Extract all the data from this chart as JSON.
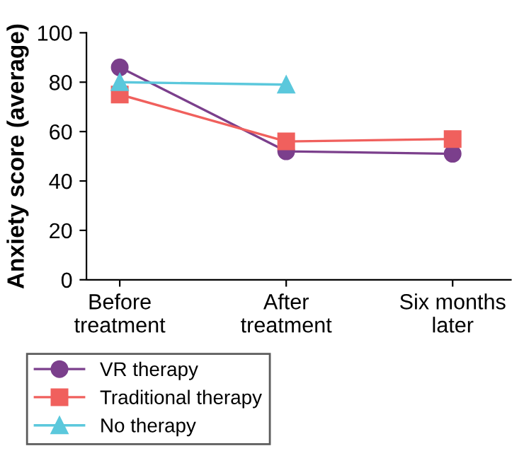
{
  "chart_data": {
    "type": "line",
    "ylabel": "Anxiety score (average)",
    "categories": [
      "Before\ntreatment",
      "After\ntreatment",
      "Six months\nlater"
    ],
    "series": [
      {
        "name": "VR therapy",
        "color": "#7b3f8c",
        "marker": "circle",
        "values": [
          86,
          52,
          51
        ]
      },
      {
        "name": "Traditional therapy",
        "color": "#f0605d",
        "marker": "square",
        "values": [
          75,
          56,
          57
        ]
      },
      {
        "name": "No therapy",
        "color": "#5bc8dc",
        "marker": "triangle",
        "values": [
          80,
          79,
          null
        ]
      }
    ],
    "ylim": [
      0,
      100
    ],
    "yticks": [
      0,
      20,
      40,
      60,
      80,
      100
    ],
    "grid": false,
    "legend": "bottom",
    "line_style": "solid"
  }
}
